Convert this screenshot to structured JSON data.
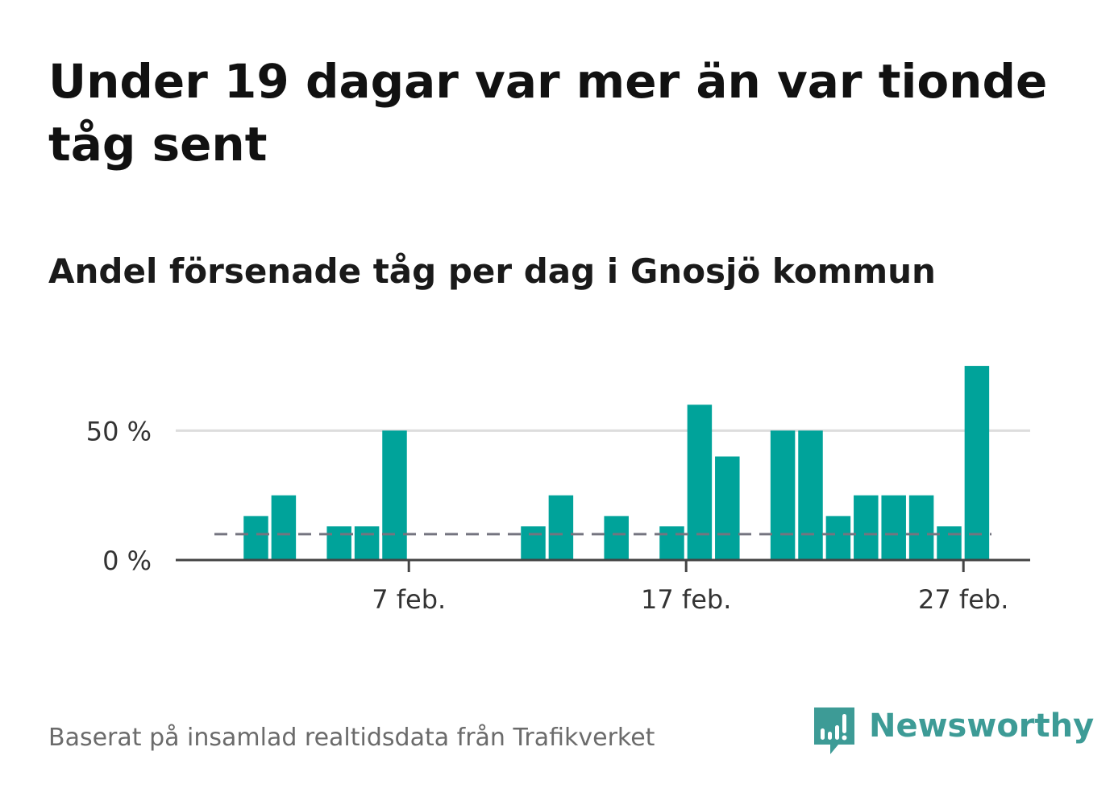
{
  "title": "Under 19 dagar var mer än var tionde tåg sent",
  "subtitle": "Andel försenade tåg per dag i Gnosjö kommun",
  "source": "Baserat på insamlad realtidsdata från Trafikverket",
  "brand": {
    "name": "Newsworthy",
    "icon": "newsworthy-logo-icon"
  },
  "colors": {
    "bar": "#00a39a",
    "reference_line": "#74747f",
    "grid": "#dddddd",
    "axis": "#444444",
    "brand": "#3d9b96"
  },
  "chart_data": {
    "type": "bar",
    "title": "Andel försenade tåg per dag i Gnosjö kommun",
    "xlabel": "",
    "ylabel": "",
    "x": [
      "1 feb.",
      "2 feb.",
      "3 feb.",
      "4 feb.",
      "5 feb.",
      "6 feb.",
      "7 feb.",
      "8 feb.",
      "9 feb.",
      "10 feb.",
      "11 feb.",
      "12 feb.",
      "13 feb.",
      "14 feb.",
      "15 feb.",
      "16 feb.",
      "17 feb.",
      "18 feb.",
      "19 feb.",
      "20 feb.",
      "21 feb.",
      "22 feb.",
      "23 feb.",
      "24 feb.",
      "25 feb.",
      "26 feb.",
      "27 feb.",
      "28 feb."
    ],
    "values": [
      17,
      25,
      0,
      13,
      13,
      50,
      0,
      0,
      0,
      0,
      13,
      25,
      0,
      17,
      0,
      13,
      60,
      40,
      0,
      50,
      50,
      17,
      25,
      25,
      25,
      13,
      75,
      null
    ],
    "xticks": [
      {
        "date": "7 feb.",
        "label": "7 feb."
      },
      {
        "date": "17 feb.",
        "label": "17 feb."
      },
      {
        "date": "27 feb.",
        "label": "27 feb."
      }
    ],
    "yticks": [
      {
        "value": 0,
        "label": "0 %"
      },
      {
        "value": 50,
        "label": "50 %"
      }
    ],
    "ylim": [
      0,
      80
    ],
    "reference_line": {
      "value": 10,
      "style": "dashed"
    },
    "grid": true,
    "legend": "none"
  }
}
